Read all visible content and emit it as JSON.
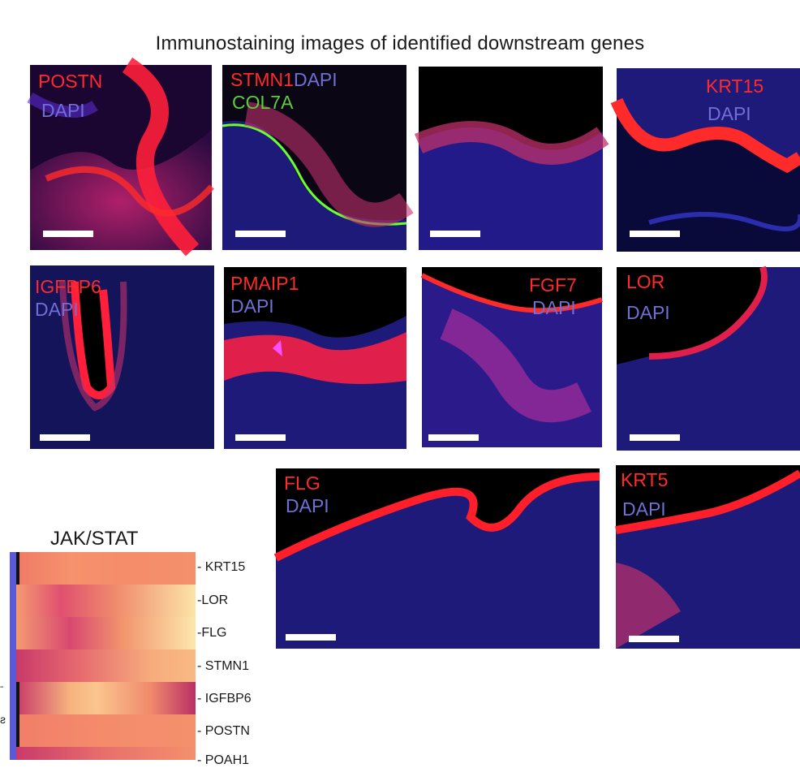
{
  "figure": {
    "title": "Immunostaining images of identified downstream genes"
  },
  "panels": [
    {
      "id": "postn",
      "labels": [
        {
          "text": "POSTN",
          "color": "red"
        },
        {
          "text": "DAPI",
          "color": "blue"
        }
      ]
    },
    {
      "id": "stmn1",
      "labels": [
        {
          "text": "STMN1",
          "color": "red"
        },
        {
          "text": "DAPI",
          "color": "blue"
        },
        {
          "text": "COL7A",
          "color": "green"
        }
      ]
    },
    {
      "id": "blank",
      "labels": []
    },
    {
      "id": "krt15",
      "labels": [
        {
          "text": "KRT15",
          "color": "red"
        },
        {
          "text": "DAPI",
          "color": "blue"
        }
      ]
    },
    {
      "id": "igfbp6",
      "labels": [
        {
          "text": "IGFBP6",
          "color": "red"
        },
        {
          "text": "DAPI",
          "color": "blue"
        }
      ]
    },
    {
      "id": "pmaip1",
      "labels": [
        {
          "text": "PMAIP1",
          "color": "red"
        },
        {
          "text": "DAPI",
          "color": "blue"
        }
      ]
    },
    {
      "id": "fgf7",
      "labels": [
        {
          "text": "FGF7",
          "color": "red"
        },
        {
          "text": "DAPI",
          "color": "blue"
        }
      ]
    },
    {
      "id": "lor",
      "labels": [
        {
          "text": "LOR",
          "color": "red"
        },
        {
          "text": "DAPI",
          "color": "blue"
        }
      ]
    },
    {
      "id": "flg",
      "labels": [
        {
          "text": "FLG",
          "color": "red"
        },
        {
          "text": "DAPI",
          "color": "blue"
        }
      ]
    },
    {
      "id": "krt5",
      "labels": [
        {
          "text": "KRT5",
          "color": "red"
        },
        {
          "text": "DAPI",
          "color": "blue"
        }
      ]
    }
  ],
  "heatmap": {
    "title": "JAK/STAT",
    "rows": [
      "KRT15",
      "LOR",
      "FLG",
      "STMN1",
      "IGFBP6",
      "POSTN"
    ],
    "partial_row_label": "POAH1"
  },
  "colors": {
    "red_stain": "#ff2a2a",
    "dapi_blue": "#6f6fd6",
    "col7a_green": "#5ccf3a",
    "heat_low": "#c93a6a",
    "heat_high": "#fde3a7"
  }
}
